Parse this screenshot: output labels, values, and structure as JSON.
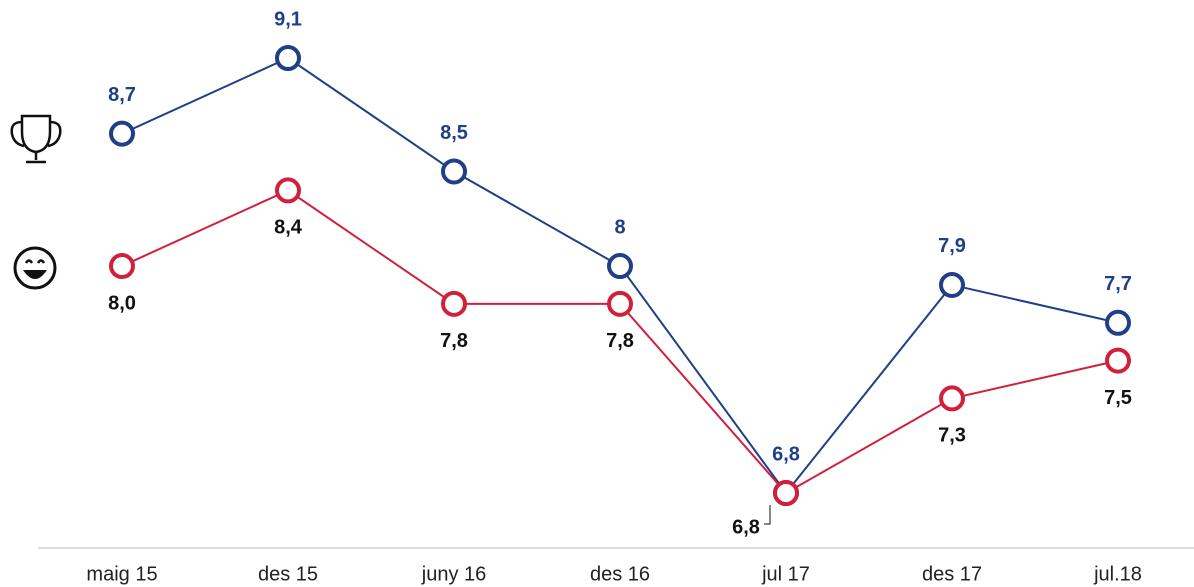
{
  "chart_data": {
    "type": "line",
    "categories": [
      "maig 15",
      "des 15",
      "juny 16",
      "des 16",
      "jul 17",
      "des 17",
      "jul.18"
    ],
    "series": [
      {
        "color": "#1f3f87",
        "values": [
          8.7,
          9.1,
          8.5,
          8,
          6.8,
          7.9,
          7.7
        ],
        "value_labels": [
          "8,7",
          "9,1",
          "8,5",
          "8",
          "6,8",
          "7,9",
          "7,7"
        ]
      },
      {
        "color": "#d0203a",
        "values": [
          8.0,
          8.4,
          7.8,
          7.8,
          6.8,
          7.3,
          7.5
        ],
        "value_labels": [
          "8,0",
          "8,4",
          "7,8",
          "7,8",
          "6,8",
          "7,3",
          "7,5"
        ]
      }
    ]
  }
}
